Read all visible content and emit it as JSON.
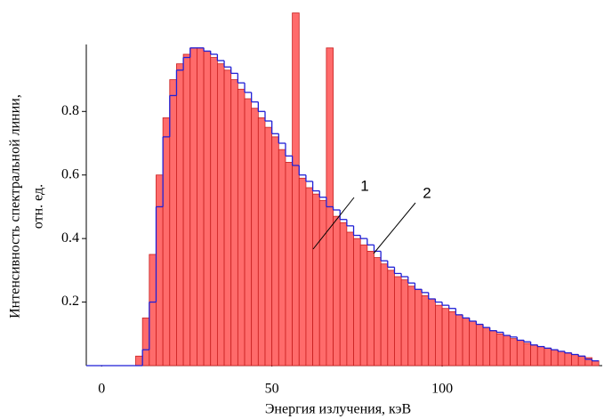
{
  "chart_data": {
    "type": "histogram",
    "x_label": "Энергия излучения, кэВ",
    "y_label": [
      "Интенсивность спектральной линии,",
      "отн. ед."
    ],
    "xlim": [
      -4.5,
      147
    ],
    "ylim": [
      0,
      1.12
    ],
    "xticks": [
      0,
      50,
      100
    ],
    "yticks": [
      0.2,
      0.4,
      0.6,
      0.8
    ],
    "bins": [
      10,
      12,
      14,
      16,
      18,
      20,
      22,
      24,
      26,
      28,
      30,
      32,
      34,
      36,
      38,
      40,
      42,
      44,
      46,
      48,
      50,
      52,
      54,
      56,
      58,
      60,
      62,
      64,
      66,
      68,
      70,
      72,
      74,
      76,
      78,
      80,
      82,
      84,
      86,
      88,
      90,
      92,
      94,
      96,
      98,
      100,
      102,
      104,
      106,
      108,
      110,
      112,
      114,
      116,
      118,
      120,
      122,
      124,
      126,
      128,
      130,
      132,
      134,
      136,
      138,
      140,
      142,
      144,
      146
    ],
    "series": [
      {
        "color": "#ff6b6b",
        "style": "bars",
        "values": [
          0.03,
          0.15,
          0.35,
          0.6,
          0.78,
          0.9,
          0.95,
          0.98,
          1.0,
          1.0,
          0.99,
          0.97,
          0.95,
          0.93,
          0.9,
          0.87,
          0.84,
          0.81,
          0.78,
          0.75,
          0.72,
          0.68,
          0.64,
          1.11,
          0.59,
          0.56,
          0.54,
          0.52,
          1.0,
          0.47,
          0.45,
          0.42,
          0.4,
          0.38,
          0.36,
          0.34,
          0.32,
          0.3,
          0.28,
          0.27,
          0.25,
          0.24,
          0.22,
          0.21,
          0.19,
          0.18,
          0.17,
          0.16,
          0.15,
          0.14,
          0.13,
          0.12,
          0.11,
          0.1,
          0.095,
          0.085,
          0.08,
          0.07,
          0.065,
          0.06,
          0.055,
          0.05,
          0.045,
          0.04,
          0.035,
          0.03,
          0.025,
          0.015
        ]
      },
      {
        "color": "#1f1fd6",
        "style": "step",
        "values": [
          0.0,
          0.05,
          0.2,
          0.5,
          0.72,
          0.85,
          0.93,
          0.97,
          1.0,
          1.0,
          0.99,
          0.98,
          0.96,
          0.94,
          0.92,
          0.89,
          0.86,
          0.83,
          0.8,
          0.77,
          0.73,
          0.7,
          0.66,
          0.63,
          0.6,
          0.58,
          0.55,
          0.53,
          0.5,
          0.49,
          0.46,
          0.44,
          0.41,
          0.4,
          0.38,
          0.36,
          0.33,
          0.31,
          0.29,
          0.28,
          0.26,
          0.24,
          0.23,
          0.21,
          0.2,
          0.19,
          0.18,
          0.16,
          0.15,
          0.14,
          0.13,
          0.12,
          0.11,
          0.105,
          0.095,
          0.09,
          0.08,
          0.075,
          0.065,
          0.06,
          0.055,
          0.05,
          0.045,
          0.04,
          0.035,
          0.03,
          0.02,
          0.015
        ]
      }
    ],
    "annotations": [
      "1",
      "2"
    ]
  }
}
